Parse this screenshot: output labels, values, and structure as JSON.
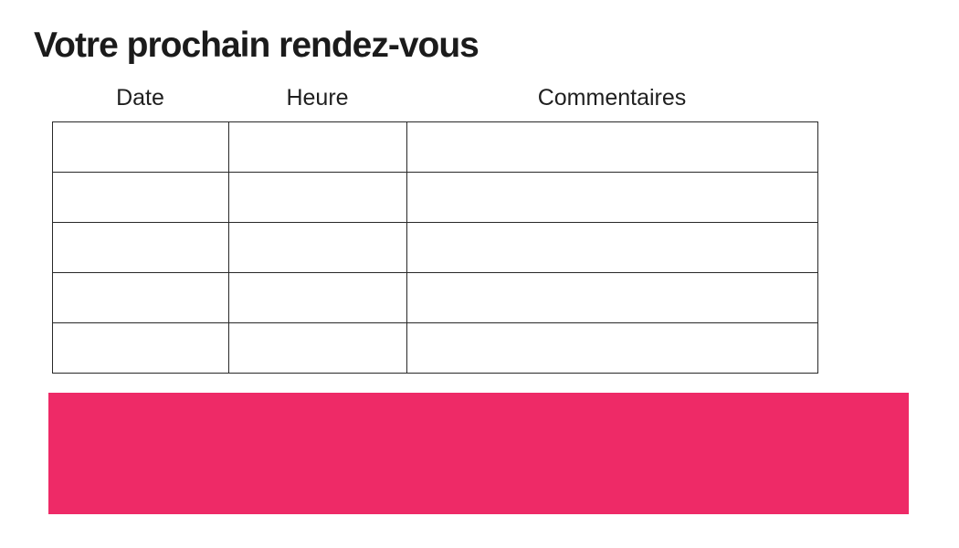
{
  "header": {
    "title": "Votre prochain rendez-vous"
  },
  "appointment_table": {
    "columns": [
      {
        "label": "Date"
      },
      {
        "label": "Heure"
      },
      {
        "label": "Commentaires"
      }
    ],
    "rows": [
      [
        "",
        "",
        ""
      ],
      [
        "",
        "",
        ""
      ],
      [
        "",
        "",
        ""
      ],
      [
        "",
        "",
        ""
      ],
      [
        "",
        "",
        ""
      ]
    ]
  },
  "banner": {
    "text": ""
  },
  "colors": {
    "accent_pink": "#ee2a67",
    "table_border": "#282828",
    "text": "#1b1b1b",
    "background": "#ffffff"
  }
}
